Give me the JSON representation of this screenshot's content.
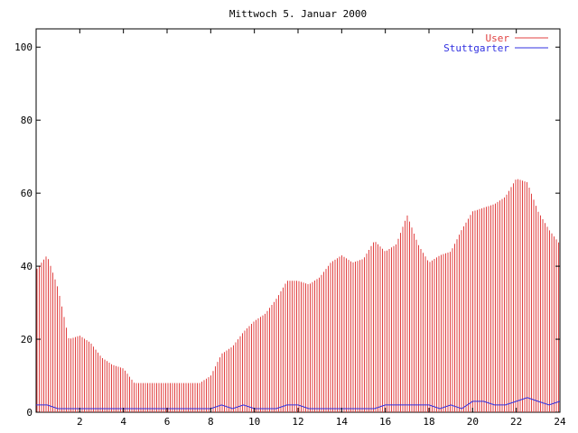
{
  "chart_data": {
    "type": "bar",
    "title": "Mittwoch 5. Januar 2000",
    "xlabel": "",
    "ylabel": "",
    "xlim": [
      0,
      24
    ],
    "ylim": [
      0,
      105
    ],
    "xticks": [
      2,
      4,
      6,
      8,
      10,
      12,
      14,
      16,
      18,
      20,
      22,
      24
    ],
    "yticks": [
      0,
      20,
      40,
      60,
      80,
      100
    ],
    "grid": false,
    "legend_position": "top-right",
    "series": [
      {
        "name": "User",
        "style": "impulses",
        "color": "#e04040",
        "x": [
          0,
          0.5,
          1,
          1.5,
          2,
          2.5,
          3,
          3.5,
          4,
          4.5,
          5,
          5.5,
          6,
          6.5,
          7,
          7.5,
          8,
          8.5,
          9,
          9.5,
          10,
          10.5,
          11,
          11.5,
          12,
          12.5,
          13,
          13.5,
          14,
          14.5,
          15,
          15.5,
          16,
          16.5,
          17,
          17.5,
          18,
          18.5,
          19,
          19.5,
          20,
          20.5,
          21,
          21.5,
          22,
          22.5,
          23,
          23.5,
          24
        ],
        "values": [
          39,
          43,
          34,
          20,
          21,
          19,
          15,
          13,
          12,
          8,
          8,
          8,
          8,
          8,
          8,
          8,
          10,
          16,
          18,
          22,
          25,
          27,
          31,
          36,
          36,
          35,
          37,
          41,
          43,
          41,
          42,
          47,
          44,
          46,
          54,
          46,
          41,
          43,
          44,
          50,
          55,
          56,
          57,
          59,
          64,
          63,
          55,
          50,
          46
        ]
      },
      {
        "name": "Stuttgarter",
        "style": "line",
        "color": "#3030e0",
        "x": [
          0,
          0.5,
          1,
          1.5,
          2,
          2.5,
          3,
          3.5,
          4,
          4.5,
          5,
          5.5,
          6,
          6.5,
          7,
          7.5,
          8,
          8.5,
          9,
          9.5,
          10,
          10.5,
          11,
          11.5,
          12,
          12.5,
          13,
          13.5,
          14,
          14.5,
          15,
          15.5,
          16,
          16.5,
          17,
          17.5,
          18,
          18.5,
          19,
          19.5,
          20,
          20.5,
          21,
          21.5,
          22,
          22.5,
          23,
          23.5,
          24
        ],
        "values": [
          2,
          2,
          1,
          1,
          1,
          1,
          1,
          1,
          1,
          1,
          1,
          1,
          1,
          1,
          1,
          1,
          1,
          2,
          1,
          2,
          1,
          1,
          1,
          2,
          2,
          1,
          1,
          1,
          1,
          1,
          1,
          1,
          2,
          2,
          2,
          2,
          2,
          1,
          2,
          1,
          3,
          3,
          2,
          2,
          3,
          4,
          3,
          2,
          3
        ]
      }
    ]
  }
}
